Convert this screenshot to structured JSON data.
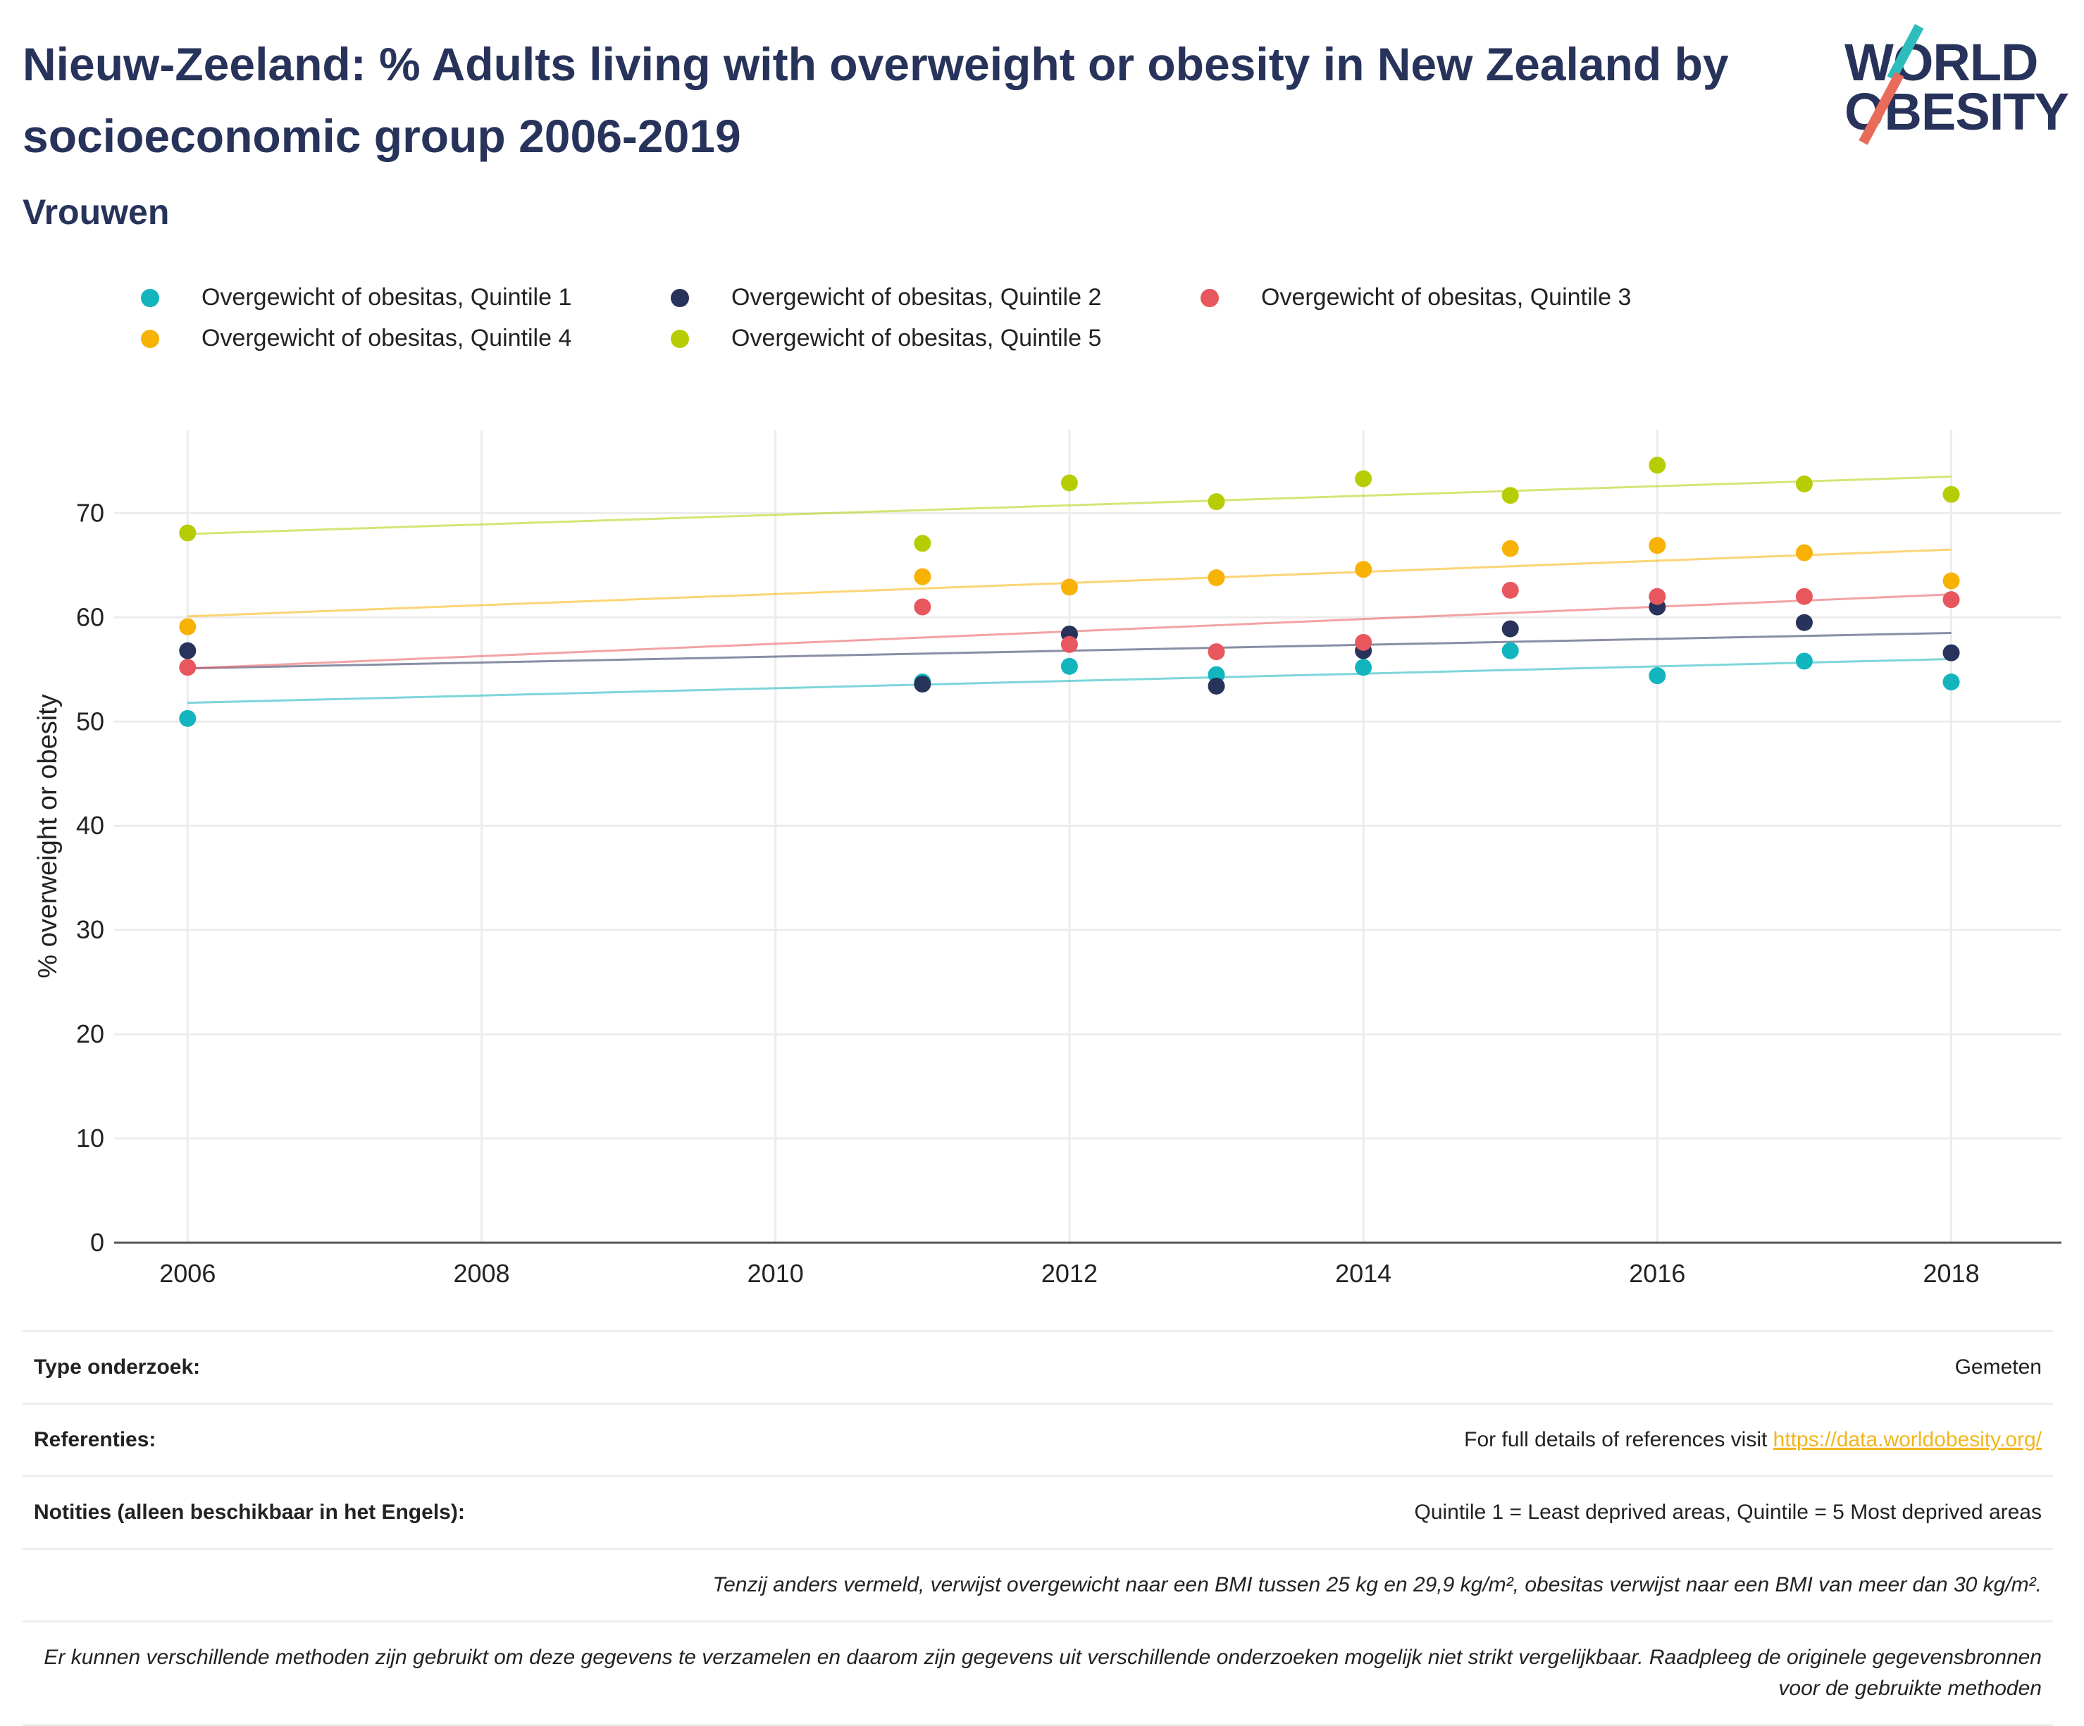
{
  "header": {
    "title": "Nieuw-Zeeland: % Adults living with overweight or obesity in New Zealand by socioeconomic group 2006-2019",
    "subtitle": "Vrouwen"
  },
  "logo": {
    "line1": "WORLD",
    "line2": "OBESITY"
  },
  "chart_data": {
    "type": "scatter",
    "ylabel": "% overweight or obesity",
    "xlim": [
      2005.5,
      2018.75
    ],
    "ylim": [
      0,
      78
    ],
    "x_ticks": [
      2006,
      2008,
      2010,
      2012,
      2014,
      2016,
      2018
    ],
    "y_ticks": [
      0,
      10,
      20,
      30,
      40,
      50,
      60,
      70
    ],
    "grid": true,
    "legend_position": "top",
    "x": [
      2006,
      2011,
      2012,
      2013,
      2014,
      2015,
      2016,
      2017,
      2018
    ],
    "series": [
      {
        "name": "Overgewicht of obesitas, Quintile 1",
        "color": "#12b5be",
        "values": [
          50.3,
          53.8,
          55.3,
          54.5,
          55.2,
          56.8,
          54.4,
          55.8,
          53.8
        ],
        "trend": [
          51.8,
          56.0
        ]
      },
      {
        "name": "Overgewicht of obesitas, Quintile 2",
        "color": "#27335a",
        "values": [
          56.8,
          53.6,
          58.4,
          53.4,
          56.8,
          58.9,
          61.0,
          59.5,
          56.6
        ],
        "trend": [
          55.1,
          58.5
        ]
      },
      {
        "name": "Overgewicht of obesitas, Quintile 3",
        "color": "#e8575d",
        "values": [
          55.2,
          61.0,
          57.4,
          56.7,
          57.6,
          62.6,
          62.0,
          62.0,
          61.7
        ],
        "trend": [
          55.1,
          62.2
        ]
      },
      {
        "name": "Overgewicht of obesitas, Quintile 4",
        "color": "#f8b205",
        "values": [
          59.1,
          63.9,
          62.9,
          63.8,
          64.6,
          66.6,
          66.9,
          66.2,
          63.5
        ],
        "trend": [
          60.1,
          66.5
        ]
      },
      {
        "name": "Overgewicht of obesitas, Quintile 5",
        "color": "#b6cd05",
        "values": [
          68.1,
          67.1,
          72.9,
          71.1,
          73.3,
          71.7,
          74.6,
          72.8,
          71.8
        ],
        "trend": [
          68.0,
          73.5
        ]
      }
    ]
  },
  "info": {
    "survey_type_label": "Type onderzoek:",
    "survey_type_value": "Gemeten",
    "references_label": "Referenties:",
    "references_text": "For full details of references visit ",
    "references_link": "https://data.worldobesity.org/",
    "notes_label": "Notities (alleen beschikbaar in het Engels):",
    "notes_value": "Quintile 1 = Least deprived areas, Quintile = 5 Most deprived areas",
    "bmi_note": "Tenzij anders vermeld, verwijst overgewicht naar een BMI tussen 25 kg en 29,9 kg/m², obesitas verwijst naar een BMI van meer dan 30 kg/m².",
    "methods_note": "Er kunnen verschillende methoden zijn gebruikt om deze gegevens te verzamelen en daarom zijn gegevens uit verschillende onderzoeken mogelijk niet strikt vergelijkbaar. Raadpleeg de originele gegevensbronnen voor de gebruikte methoden"
  }
}
